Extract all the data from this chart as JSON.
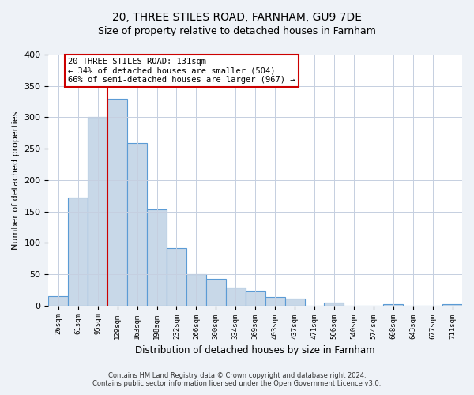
{
  "title": "20, THREE STILES ROAD, FARNHAM, GU9 7DE",
  "subtitle": "Size of property relative to detached houses in Farnham",
  "xlabel": "Distribution of detached houses by size in Farnham",
  "ylabel": "Number of detached properties",
  "bar_labels": [
    "26sqm",
    "61sqm",
    "95sqm",
    "129sqm",
    "163sqm",
    "198sqm",
    "232sqm",
    "266sqm",
    "300sqm",
    "334sqm",
    "369sqm",
    "403sqm",
    "437sqm",
    "471sqm",
    "506sqm",
    "540sqm",
    "574sqm",
    "608sqm",
    "643sqm",
    "677sqm",
    "711sqm"
  ],
  "bar_heights": [
    15,
    172,
    300,
    330,
    259,
    153,
    92,
    50,
    42,
    29,
    23,
    13,
    11,
    0,
    5,
    0,
    0,
    2,
    0,
    0,
    2
  ],
  "bar_color": "#c8d8e8",
  "bar_edge_color": "#5b9bd5",
  "vline_x_idx": 3,
  "vline_color": "#cc0000",
  "annotation_text": "20 THREE STILES ROAD: 131sqm\n← 34% of detached houses are smaller (504)\n66% of semi-detached houses are larger (967) →",
  "annotation_box_color": "#ffffff",
  "annotation_box_edge": "#cc0000",
  "ylim": [
    0,
    400
  ],
  "yticks": [
    0,
    50,
    100,
    150,
    200,
    250,
    300,
    350,
    400
  ],
  "footer_line1": "Contains HM Land Registry data © Crown copyright and database right 2024.",
  "footer_line2": "Contains public sector information licensed under the Open Government Licence v3.0.",
  "bg_color": "#eef2f7",
  "plot_bg_color": "#ffffff",
  "grid_color": "#c5cfe0"
}
